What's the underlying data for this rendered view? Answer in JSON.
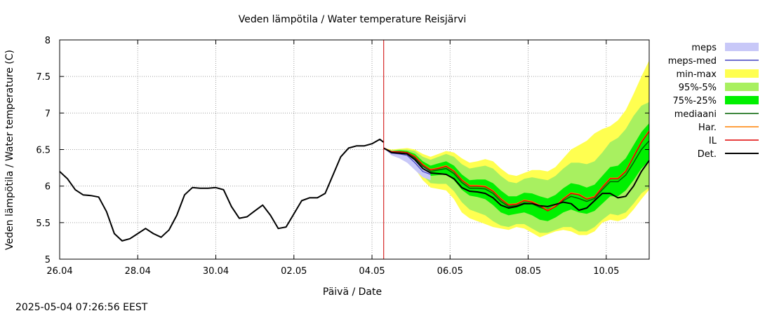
{
  "chart_data": {
    "type": "line",
    "title": "Veden lämpötila / Water temperature Reisjärvi",
    "xlabel": "Päivä / Date",
    "ylabel": "Veden lämpötila / Water temperature (C)",
    "footer_timestamp": "2025-05-04 07:26:56 EEST",
    "x_unit": "days since 26.04 00:00",
    "xlim": [
      0,
      15.1
    ],
    "ylim": [
      5,
      8
    ],
    "x_ticks": [
      {
        "x": 0,
        "label": "26.04"
      },
      {
        "x": 2,
        "label": "28.04"
      },
      {
        "x": 4,
        "label": "30.04"
      },
      {
        "x": 6,
        "label": "02.05"
      },
      {
        "x": 8,
        "label": "04.05"
      },
      {
        "x": 10,
        "label": "06.05"
      },
      {
        "x": 12,
        "label": "08.05"
      },
      {
        "x": 14,
        "label": "10.05"
      }
    ],
    "y_ticks": [
      {
        "y": 5,
        "label": "5"
      },
      {
        "y": 5.5,
        "label": "5.5"
      },
      {
        "y": 6,
        "label": "6"
      },
      {
        "y": 6.5,
        "label": "6.5"
      },
      {
        "y": 7,
        "label": "7"
      },
      {
        "y": 7.5,
        "label": "7.5"
      },
      {
        "y": 8,
        "label": "8"
      }
    ],
    "grid": true,
    "forecast_start_x": 8.3,
    "legend_position": "right",
    "legend": [
      {
        "key": "meps",
        "label": "meps",
        "kind": "band",
        "color": "#c8c8f8"
      },
      {
        "key": "meps_med",
        "label": "meps-med",
        "kind": "line",
        "color": "#4040c0"
      },
      {
        "key": "minmax",
        "label": "min-max",
        "kind": "band",
        "color": "#ffff50"
      },
      {
        "key": "p95_5",
        "label": "95%-5%",
        "kind": "band",
        "color": "#a8f060"
      },
      {
        "key": "p75_25",
        "label": "75%-25%",
        "kind": "band",
        "color": "#00f000"
      },
      {
        "key": "mediaani",
        "label": "mediaani",
        "kind": "line",
        "color": "#006000"
      },
      {
        "key": "har",
        "label": "Har.",
        "kind": "line",
        "color": "#ff8000"
      },
      {
        "key": "il",
        "label": "IL",
        "kind": "line",
        "color": "#e00000"
      },
      {
        "key": "det",
        "label": "Det.",
        "kind": "line",
        "color": "#000000"
      }
    ],
    "observed": {
      "x": [
        0,
        0.2,
        0.4,
        0.6,
        0.8,
        1.0,
        1.2,
        1.4,
        1.6,
        1.8,
        2.0,
        2.2,
        2.4,
        2.6,
        2.8,
        3.0,
        3.2,
        3.4,
        3.6,
        3.8,
        4.0,
        4.2,
        4.4,
        4.6,
        4.8,
        5.0,
        5.2,
        5.4,
        5.6,
        5.8,
        6.0,
        6.2,
        6.4,
        6.6,
        6.8,
        7.0,
        7.2,
        7.4,
        7.6,
        7.8,
        8.0,
        8.2,
        8.3
      ],
      "y": [
        6.2,
        6.1,
        5.95,
        5.88,
        5.87,
        5.85,
        5.65,
        5.35,
        5.25,
        5.28,
        5.35,
        5.42,
        5.35,
        5.3,
        5.4,
        5.6,
        5.88,
        5.98,
        5.97,
        5.97,
        5.98,
        5.95,
        5.72,
        5.56,
        5.58,
        5.66,
        5.74,
        5.6,
        5.42,
        5.44,
        5.62,
        5.8,
        5.84,
        5.84,
        5.9,
        6.15,
        6.4,
        6.52,
        6.55,
        6.55,
        6.58,
        6.64,
        6.6
      ]
    },
    "forecast_x": [
      8.3,
      8.5,
      8.7,
      8.9,
      9.1,
      9.3,
      9.5,
      9.7,
      9.9,
      10.1,
      10.3,
      10.5,
      10.7,
      10.9,
      11.1,
      11.3,
      11.5,
      11.7,
      11.9,
      12.1,
      12.3,
      12.5,
      12.7,
      12.9,
      13.1,
      13.3,
      13.5,
      13.7,
      13.9,
      14.1,
      14.3,
      14.5,
      14.7,
      14.9,
      15.1
    ],
    "forecast": {
      "det": [
        6.52,
        6.46,
        6.45,
        6.44,
        6.36,
        6.24,
        6.18,
        6.17,
        6.16,
        6.1,
        5.98,
        5.93,
        5.92,
        5.9,
        5.84,
        5.74,
        5.7,
        5.72,
        5.76,
        5.76,
        5.73,
        5.72,
        5.75,
        5.78,
        5.76,
        5.67,
        5.7,
        5.8,
        5.9,
        5.9,
        5.84,
        5.86,
        6.0,
        6.2,
        6.35
      ],
      "il": [
        6.52,
        6.47,
        6.47,
        6.46,
        6.4,
        6.29,
        6.22,
        6.24,
        6.27,
        6.2,
        6.08,
        6.0,
        6.0,
        5.99,
        5.93,
        5.82,
        5.74,
        5.75,
        5.8,
        5.78,
        5.73,
        5.66,
        5.72,
        5.82,
        5.9,
        5.88,
        5.82,
        5.85,
        5.98,
        6.1,
        6.1,
        6.2,
        6.4,
        6.6,
        6.75
      ],
      "har": [
        6.52,
        6.47,
        6.47,
        6.46,
        6.41,
        6.3,
        6.23,
        6.25,
        6.28,
        6.21,
        6.09,
        6.01,
        6.01,
        6.0,
        5.94,
        5.83,
        5.75,
        5.76,
        5.81,
        5.79,
        5.74,
        5.67,
        5.73,
        5.83,
        5.91,
        5.89,
        5.83,
        5.86,
        5.99,
        6.11,
        6.11,
        6.21,
        6.41,
        6.61,
        6.76
      ],
      "mediaani": [
        6.52,
        6.46,
        6.46,
        6.45,
        6.38,
        6.27,
        6.2,
        6.22,
        6.24,
        6.17,
        6.05,
        5.97,
        5.97,
        5.96,
        5.9,
        5.79,
        5.72,
        5.73,
        5.77,
        5.76,
        5.71,
        5.68,
        5.72,
        5.8,
        5.86,
        5.83,
        5.79,
        5.83,
        5.95,
        6.06,
        6.06,
        6.15,
        6.32,
        6.5,
        6.62
      ],
      "meps_med": [
        6.52,
        6.45,
        6.44,
        6.42,
        6.32,
        6.2,
        6.16
      ],
      "meps_lo": [
        6.52,
        6.42,
        6.38,
        6.32,
        6.22,
        6.12,
        6.08
      ],
      "meps_hi": [
        6.52,
        6.48,
        6.48,
        6.46,
        6.38,
        6.26,
        6.2
      ],
      "p25": [
        6.52,
        6.45,
        6.44,
        6.42,
        6.34,
        6.22,
        6.14,
        6.15,
        6.16,
        6.08,
        5.95,
        5.87,
        5.85,
        5.82,
        5.74,
        5.64,
        5.6,
        5.62,
        5.64,
        5.6,
        5.54,
        5.52,
        5.57,
        5.64,
        5.68,
        5.64,
        5.62,
        5.66,
        5.76,
        5.86,
        5.86,
        5.94,
        6.08,
        6.24,
        6.35
      ],
      "p75": [
        6.52,
        6.48,
        6.49,
        6.48,
        6.44,
        6.34,
        6.28,
        6.31,
        6.34,
        6.28,
        6.16,
        6.08,
        6.09,
        6.09,
        6.04,
        5.94,
        5.86,
        5.86,
        5.91,
        5.9,
        5.86,
        5.83,
        5.88,
        5.97,
        6.04,
        6.02,
        5.98,
        6.02,
        6.14,
        6.26,
        6.28,
        6.38,
        6.56,
        6.74,
        6.86
      ],
      "p5": [
        6.52,
        6.44,
        6.42,
        6.38,
        6.28,
        6.14,
        6.04,
        6.03,
        6.03,
        5.93,
        5.78,
        5.68,
        5.64,
        5.6,
        5.52,
        5.46,
        5.44,
        5.48,
        5.48,
        5.42,
        5.36,
        5.36,
        5.4,
        5.44,
        5.44,
        5.38,
        5.38,
        5.44,
        5.54,
        5.62,
        5.6,
        5.64,
        5.76,
        5.9,
        5.98
      ],
      "p95": [
        6.52,
        6.49,
        6.5,
        6.5,
        6.48,
        6.4,
        6.36,
        6.4,
        6.44,
        6.4,
        6.3,
        6.24,
        6.26,
        6.28,
        6.24,
        6.14,
        6.06,
        6.04,
        6.1,
        6.12,
        6.1,
        6.08,
        6.14,
        6.24,
        6.32,
        6.32,
        6.3,
        6.34,
        6.46,
        6.6,
        6.66,
        6.78,
        6.96,
        7.1,
        7.15
      ],
      "minmax_lo": [
        6.52,
        6.43,
        6.4,
        6.36,
        6.24,
        6.08,
        5.98,
        5.96,
        5.94,
        5.82,
        5.64,
        5.56,
        5.52,
        5.48,
        5.44,
        5.42,
        5.4,
        5.44,
        5.42,
        5.36,
        5.3,
        5.34,
        5.38,
        5.4,
        5.38,
        5.33,
        5.33,
        5.38,
        5.5,
        5.54,
        5.52,
        5.56,
        5.68,
        5.82,
        5.95
      ],
      "minmax_hi": [
        6.52,
        6.5,
        6.51,
        6.52,
        6.5,
        6.44,
        6.4,
        6.44,
        6.48,
        6.46,
        6.38,
        6.32,
        6.34,
        6.37,
        6.34,
        6.24,
        6.16,
        6.14,
        6.18,
        6.22,
        6.22,
        6.2,
        6.26,
        6.38,
        6.5,
        6.56,
        6.62,
        6.72,
        6.78,
        6.82,
        6.9,
        7.04,
        7.26,
        7.5,
        7.72
      ]
    }
  }
}
